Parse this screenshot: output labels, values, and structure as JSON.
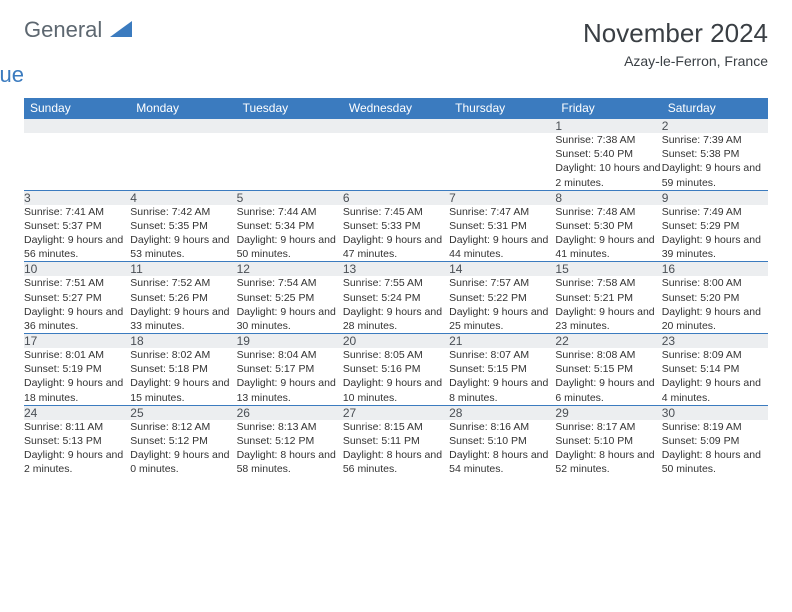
{
  "brand": {
    "text1": "General",
    "text2": "Blue",
    "color_gray": "#5d6770",
    "color_blue": "#3b7bbf"
  },
  "title": "November 2024",
  "location": "Azay-le-Ferron, France",
  "header_bg": "#3b7bbf",
  "daynum_bg": "#eceef0",
  "text_color": "#333333",
  "columns": [
    "Sunday",
    "Monday",
    "Tuesday",
    "Wednesday",
    "Thursday",
    "Friday",
    "Saturday"
  ],
  "weeks": [
    [
      null,
      null,
      null,
      null,
      null,
      {
        "n": "1",
        "sr": "Sunrise: 7:38 AM",
        "ss": "Sunset: 5:40 PM",
        "dl": "Daylight: 10 hours and 2 minutes."
      },
      {
        "n": "2",
        "sr": "Sunrise: 7:39 AM",
        "ss": "Sunset: 5:38 PM",
        "dl": "Daylight: 9 hours and 59 minutes."
      }
    ],
    [
      {
        "n": "3",
        "sr": "Sunrise: 7:41 AM",
        "ss": "Sunset: 5:37 PM",
        "dl": "Daylight: 9 hours and 56 minutes."
      },
      {
        "n": "4",
        "sr": "Sunrise: 7:42 AM",
        "ss": "Sunset: 5:35 PM",
        "dl": "Daylight: 9 hours and 53 minutes."
      },
      {
        "n": "5",
        "sr": "Sunrise: 7:44 AM",
        "ss": "Sunset: 5:34 PM",
        "dl": "Daylight: 9 hours and 50 minutes."
      },
      {
        "n": "6",
        "sr": "Sunrise: 7:45 AM",
        "ss": "Sunset: 5:33 PM",
        "dl": "Daylight: 9 hours and 47 minutes."
      },
      {
        "n": "7",
        "sr": "Sunrise: 7:47 AM",
        "ss": "Sunset: 5:31 PM",
        "dl": "Daylight: 9 hours and 44 minutes."
      },
      {
        "n": "8",
        "sr": "Sunrise: 7:48 AM",
        "ss": "Sunset: 5:30 PM",
        "dl": "Daylight: 9 hours and 41 minutes."
      },
      {
        "n": "9",
        "sr": "Sunrise: 7:49 AM",
        "ss": "Sunset: 5:29 PM",
        "dl": "Daylight: 9 hours and 39 minutes."
      }
    ],
    [
      {
        "n": "10",
        "sr": "Sunrise: 7:51 AM",
        "ss": "Sunset: 5:27 PM",
        "dl": "Daylight: 9 hours and 36 minutes."
      },
      {
        "n": "11",
        "sr": "Sunrise: 7:52 AM",
        "ss": "Sunset: 5:26 PM",
        "dl": "Daylight: 9 hours and 33 minutes."
      },
      {
        "n": "12",
        "sr": "Sunrise: 7:54 AM",
        "ss": "Sunset: 5:25 PM",
        "dl": "Daylight: 9 hours and 30 minutes."
      },
      {
        "n": "13",
        "sr": "Sunrise: 7:55 AM",
        "ss": "Sunset: 5:24 PM",
        "dl": "Daylight: 9 hours and 28 minutes."
      },
      {
        "n": "14",
        "sr": "Sunrise: 7:57 AM",
        "ss": "Sunset: 5:22 PM",
        "dl": "Daylight: 9 hours and 25 minutes."
      },
      {
        "n": "15",
        "sr": "Sunrise: 7:58 AM",
        "ss": "Sunset: 5:21 PM",
        "dl": "Daylight: 9 hours and 23 minutes."
      },
      {
        "n": "16",
        "sr": "Sunrise: 8:00 AM",
        "ss": "Sunset: 5:20 PM",
        "dl": "Daylight: 9 hours and 20 minutes."
      }
    ],
    [
      {
        "n": "17",
        "sr": "Sunrise: 8:01 AM",
        "ss": "Sunset: 5:19 PM",
        "dl": "Daylight: 9 hours and 18 minutes."
      },
      {
        "n": "18",
        "sr": "Sunrise: 8:02 AM",
        "ss": "Sunset: 5:18 PM",
        "dl": "Daylight: 9 hours and 15 minutes."
      },
      {
        "n": "19",
        "sr": "Sunrise: 8:04 AM",
        "ss": "Sunset: 5:17 PM",
        "dl": "Daylight: 9 hours and 13 minutes."
      },
      {
        "n": "20",
        "sr": "Sunrise: 8:05 AM",
        "ss": "Sunset: 5:16 PM",
        "dl": "Daylight: 9 hours and 10 minutes."
      },
      {
        "n": "21",
        "sr": "Sunrise: 8:07 AM",
        "ss": "Sunset: 5:15 PM",
        "dl": "Daylight: 9 hours and 8 minutes."
      },
      {
        "n": "22",
        "sr": "Sunrise: 8:08 AM",
        "ss": "Sunset: 5:15 PM",
        "dl": "Daylight: 9 hours and 6 minutes."
      },
      {
        "n": "23",
        "sr": "Sunrise: 8:09 AM",
        "ss": "Sunset: 5:14 PM",
        "dl": "Daylight: 9 hours and 4 minutes."
      }
    ],
    [
      {
        "n": "24",
        "sr": "Sunrise: 8:11 AM",
        "ss": "Sunset: 5:13 PM",
        "dl": "Daylight: 9 hours and 2 minutes."
      },
      {
        "n": "25",
        "sr": "Sunrise: 8:12 AM",
        "ss": "Sunset: 5:12 PM",
        "dl": "Daylight: 9 hours and 0 minutes."
      },
      {
        "n": "26",
        "sr": "Sunrise: 8:13 AM",
        "ss": "Sunset: 5:12 PM",
        "dl": "Daylight: 8 hours and 58 minutes."
      },
      {
        "n": "27",
        "sr": "Sunrise: 8:15 AM",
        "ss": "Sunset: 5:11 PM",
        "dl": "Daylight: 8 hours and 56 minutes."
      },
      {
        "n": "28",
        "sr": "Sunrise: 8:16 AM",
        "ss": "Sunset: 5:10 PM",
        "dl": "Daylight: 8 hours and 54 minutes."
      },
      {
        "n": "29",
        "sr": "Sunrise: 8:17 AM",
        "ss": "Sunset: 5:10 PM",
        "dl": "Daylight: 8 hours and 52 minutes."
      },
      {
        "n": "30",
        "sr": "Sunrise: 8:19 AM",
        "ss": "Sunset: 5:09 PM",
        "dl": "Daylight: 8 hours and 50 minutes."
      }
    ]
  ]
}
